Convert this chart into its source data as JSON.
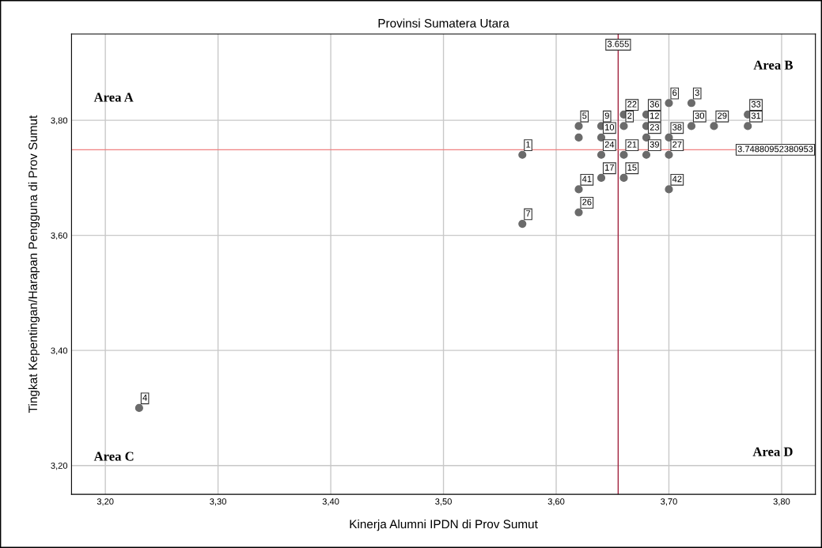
{
  "chart_data": {
    "type": "scatter",
    "title": "Provinsi Sumatera Utara",
    "xlabel": "Kinerja Alumni IPDN di Prov Sumut",
    "ylabel": "Tingkat Kepentingan/Harapan Pengguna di Prov Sumut",
    "x": [
      3.23,
      3.57,
      3.57,
      3.62,
      3.62,
      3.62,
      3.62,
      3.64,
      3.64,
      3.64,
      3.64,
      3.66,
      3.66,
      3.66,
      3.66,
      3.68,
      3.68,
      3.68,
      3.68,
      3.7,
      3.7,
      3.7,
      3.7,
      3.72,
      3.72,
      3.74,
      3.77,
      3.77
    ],
    "series": [
      {
        "color": "#6b6b6b",
        "values": [
          3.3,
          3.74,
          3.62,
          3.79,
          3.77,
          3.68,
          3.64,
          3.79,
          3.77,
          3.74,
          3.7,
          3.81,
          3.79,
          3.74,
          3.7,
          3.81,
          3.79,
          3.77,
          3.74,
          3.83,
          3.77,
          3.74,
          3.68,
          3.83,
          3.79,
          3.79,
          3.81,
          3.79
        ]
      }
    ],
    "marker": "circle",
    "grid": true,
    "xlim": [
      3.17,
      3.83
    ],
    "xticks": [
      {
        "value": 3.2,
        "label": "3,20"
      },
      {
        "value": 3.3,
        "label": "3,30"
      },
      {
        "value": 3.4,
        "label": "3,40"
      },
      {
        "value": 3.5,
        "label": "3,50"
      },
      {
        "value": 3.6,
        "label": "3,60"
      },
      {
        "value": 3.7,
        "label": "3,70"
      },
      {
        "value": 3.8,
        "label": "3,80"
      }
    ],
    "ylim": [
      3.15,
      3.95
    ],
    "yticks": [
      {
        "value": 3.2,
        "label": "3,20"
      },
      {
        "value": 3.4,
        "label": "3,40"
      },
      {
        "value": 3.6,
        "label": "3,60"
      },
      {
        "value": 3.8,
        "label": "3,80"
      }
    ],
    "ref_lines": [
      {
        "axis": "x",
        "value": 3.655,
        "label": "3.655",
        "color": "#a0203c"
      },
      {
        "axis": "y",
        "value": 3.74880952380953,
        "label": "3.74880952380953",
        "color": "#f08080"
      }
    ],
    "annotations": [
      "Area A",
      "Area B",
      "Area C",
      "Area D",
      {
        "text": "4",
        "x": 3.23,
        "y": 3.3
      },
      {
        "text": "1",
        "x": 3.57,
        "y": 3.74
      },
      {
        "text": "7",
        "x": 3.57,
        "y": 3.62
      },
      {
        "text": "5",
        "x": 3.62,
        "y": 3.79
      },
      {
        "text": "41",
        "x": 3.62,
        "y": 3.68
      },
      {
        "text": "26",
        "x": 3.62,
        "y": 3.64
      },
      {
        "text": "9",
        "x": 3.64,
        "y": 3.79
      },
      {
        "text": "10",
        "x": 3.64,
        "y": 3.77
      },
      {
        "text": "24",
        "x": 3.64,
        "y": 3.74
      },
      {
        "text": "17",
        "x": 3.64,
        "y": 3.7
      },
      {
        "text": "22",
        "x": 3.66,
        "y": 3.81
      },
      {
        "text": "2",
        "x": 3.66,
        "y": 3.79
      },
      {
        "text": "21",
        "x": 3.66,
        "y": 3.74
      },
      {
        "text": "15",
        "x": 3.66,
        "y": 3.7
      },
      {
        "text": "36",
        "x": 3.68,
        "y": 3.81
      },
      {
        "text": "12",
        "x": 3.68,
        "y": 3.79
      },
      {
        "text": "23",
        "x": 3.68,
        "y": 3.77
      },
      {
        "text": "39",
        "x": 3.68,
        "y": 3.74
      },
      {
        "text": "6",
        "x": 3.7,
        "y": 3.83
      },
      {
        "text": "38",
        "x": 3.7,
        "y": 3.77
      },
      {
        "text": "27",
        "x": 3.7,
        "y": 3.74
      },
      {
        "text": "42",
        "x": 3.7,
        "y": 3.68
      },
      {
        "text": "3",
        "x": 3.72,
        "y": 3.83
      },
      {
        "text": "30",
        "x": 3.72,
        "y": 3.79
      },
      {
        "text": "29",
        "x": 3.74,
        "y": 3.79
      },
      {
        "text": "33",
        "x": 3.77,
        "y": 3.81
      },
      {
        "text": "31",
        "x": 3.77,
        "y": 3.79
      }
    ]
  }
}
